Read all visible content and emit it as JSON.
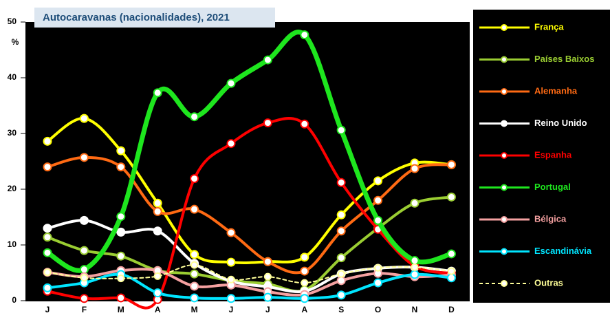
{
  "chart_data": {
    "type": "line",
    "title": "Autocaravanas (nacionalidades), 2021",
    "y_label": "%",
    "categories": [
      "J",
      "F",
      "M",
      "A",
      "M",
      "J",
      "J",
      "A",
      "S",
      "O",
      "N",
      "D"
    ],
    "ylim": [
      0,
      50
    ],
    "yticks": [
      0,
      10,
      20,
      30,
      40,
      50
    ],
    "series": [
      {
        "name": "França",
        "color": "#ffff00",
        "width": 4,
        "values": [
          28.6,
          32.7,
          26.9,
          17.5,
          8.3,
          6.9,
          7.0,
          7.8,
          15.4,
          21.5,
          24.7,
          24.4
        ]
      },
      {
        "name": "Países Baixos",
        "color": "#9acd32",
        "width": 4,
        "values": [
          11.4,
          9.0,
          8.0,
          5.4,
          4.8,
          3.6,
          3.0,
          1.9,
          7.7,
          13.0,
          17.5,
          18.6
        ]
      },
      {
        "name": "Alemanha",
        "color": "#ff6a13",
        "width": 4,
        "values": [
          24.0,
          25.7,
          24.0,
          16.0,
          16.4,
          12.2,
          7.0,
          5.3,
          12.5,
          18.0,
          23.7,
          24.4
        ]
      },
      {
        "name": "Reino Unido",
        "color": "#ffffff",
        "width": 4,
        "values": [
          13.0,
          14.4,
          12.3,
          12.5,
          6.7,
          3.5,
          2.5,
          1.7,
          4.8,
          5.8,
          6.0,
          5.3
        ]
      },
      {
        "name": "Espanha",
        "color": "#ff0000",
        "width": 4,
        "values": [
          1.7,
          0.4,
          0.5,
          0.2,
          21.9,
          28.2,
          31.9,
          31.7,
          21.2,
          12.8,
          6.2,
          4.9
        ]
      },
      {
        "name": "Portugal",
        "color": "#1ee61e",
        "width": 7,
        "values": [
          8.6,
          5.6,
          15.1,
          37.3,
          33.0,
          39.0,
          43.2,
          47.7,
          30.6,
          14.4,
          7.2,
          8.4
        ]
      },
      {
        "name": "Bélgica",
        "color": "#f4a0a0",
        "width": 4,
        "values": [
          5.1,
          4.3,
          5.4,
          5.4,
          2.6,
          2.8,
          1.6,
          1.1,
          3.6,
          4.9,
          4.3,
          4.6
        ]
      },
      {
        "name": "Escandinávia",
        "color": "#00e5ff",
        "width": 4,
        "values": [
          2.3,
          3.2,
          4.7,
          1.4,
          0.5,
          0.4,
          0.6,
          0.4,
          1.0,
          3.2,
          4.7,
          4.1
        ]
      },
      {
        "name": "Outras",
        "color": "#ffff99",
        "width": 2,
        "dashed": true,
        "values": [
          5.1,
          4.1,
          4.0,
          4.4,
          6.4,
          3.8,
          4.3,
          3.2,
          4.8,
          5.9,
          6.0,
          5.3
        ]
      }
    ]
  }
}
